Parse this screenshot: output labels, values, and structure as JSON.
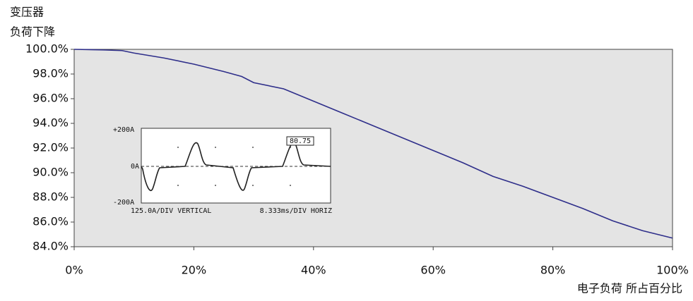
{
  "chart_data": {
    "type": "line",
    "ylabel_lines": [
      "变压器",
      "负荷下降"
    ],
    "xlabel": "电子负荷 所占百分比",
    "x": [
      0,
      5,
      8,
      10,
      15,
      20,
      25,
      28,
      30,
      35,
      40,
      45,
      50,
      55,
      60,
      65,
      70,
      75,
      80,
      85,
      90,
      95,
      100
    ],
    "series": [
      {
        "color": "#2e2e8a",
        "values": [
          100,
          99.95,
          99.9,
          99.7,
          99.3,
          98.8,
          98.2,
          97.8,
          97.3,
          96.8,
          95.8,
          94.8,
          93.8,
          92.8,
          91.8,
          90.8,
          89.7,
          88.9,
          88.0,
          87.1,
          86.1,
          85.3,
          84.7
        ]
      }
    ],
    "xlim": [
      0,
      100
    ],
    "xticks": [
      {
        "value": 0,
        "label": "0%"
      },
      {
        "value": 20,
        "label": "20%"
      },
      {
        "value": 40,
        "label": "40%"
      },
      {
        "value": 60,
        "label": "60%"
      },
      {
        "value": 80,
        "label": "80%"
      },
      {
        "value": 100,
        "label": "100%"
      }
    ],
    "ylim": [
      84,
      100
    ],
    "yticks": [
      {
        "value": 84,
        "label": "84.0%"
      },
      {
        "value": 86,
        "label": "86.0%"
      },
      {
        "value": 88,
        "label": "88.0%"
      },
      {
        "value": 90,
        "label": "90.0%"
      },
      {
        "value": 92,
        "label": "92.0%"
      },
      {
        "value": 94,
        "label": "94.0%"
      },
      {
        "value": 96,
        "label": "96.0%"
      },
      {
        "value": 98,
        "label": "98.0%"
      },
      {
        "value": 100,
        "label": "100.0%"
      }
    ],
    "plot_background": "#e4e4e4",
    "inset": {
      "top_label": "+200A",
      "zero_label": "0A",
      "bottom_label": "-200A",
      "vertical_scale": "125.0A/DIV VERTICAL",
      "horizontal_scale": "8.333ms/DIV HORIZ",
      "marker_label": "80.75"
    }
  }
}
